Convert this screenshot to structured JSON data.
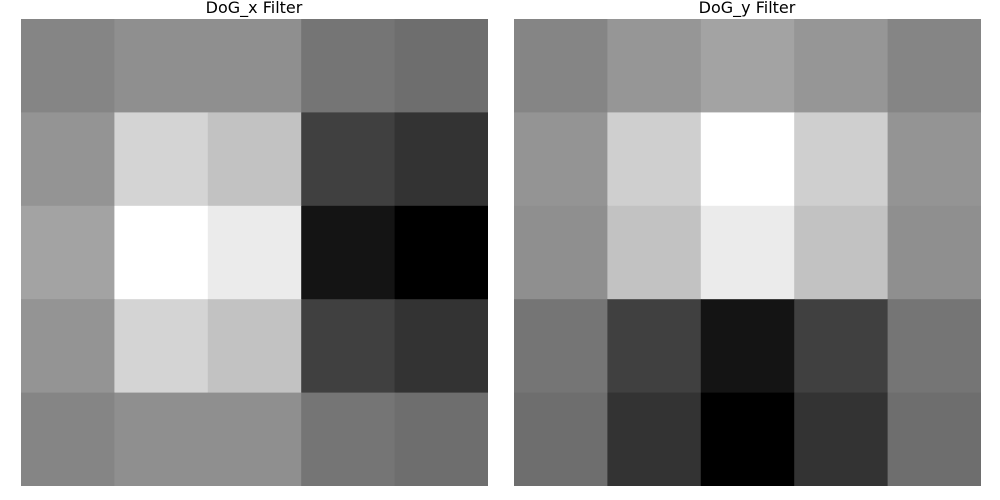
{
  "chart_data": [
    {
      "type": "heatmap",
      "title": "DoG_x Filter",
      "xlabel": "",
      "ylabel": "",
      "colormap": "gray",
      "grid": false,
      "axes_visible": false,
      "rows": 5,
      "cols": 5,
      "values": [
        [
          0.52,
          0.56,
          0.56,
          0.46,
          0.43
        ],
        [
          0.58,
          0.83,
          0.76,
          0.25,
          0.2
        ],
        [
          0.64,
          1.0,
          0.92,
          0.08,
          0.0
        ],
        [
          0.58,
          0.83,
          0.76,
          0.25,
          0.2
        ],
        [
          0.52,
          0.56,
          0.56,
          0.46,
          0.43
        ]
      ]
    },
    {
      "type": "heatmap",
      "title": "DoG_y Filter",
      "xlabel": "",
      "ylabel": "",
      "colormap": "gray",
      "grid": false,
      "axes_visible": false,
      "rows": 5,
      "cols": 5,
      "values": [
        [
          0.52,
          0.59,
          0.64,
          0.59,
          0.52
        ],
        [
          0.58,
          0.81,
          1.0,
          0.81,
          0.58
        ],
        [
          0.56,
          0.76,
          0.92,
          0.76,
          0.56
        ],
        [
          0.46,
          0.25,
          0.08,
          0.25,
          0.46
        ],
        [
          0.43,
          0.2,
          0.0,
          0.2,
          0.43
        ]
      ]
    }
  ]
}
